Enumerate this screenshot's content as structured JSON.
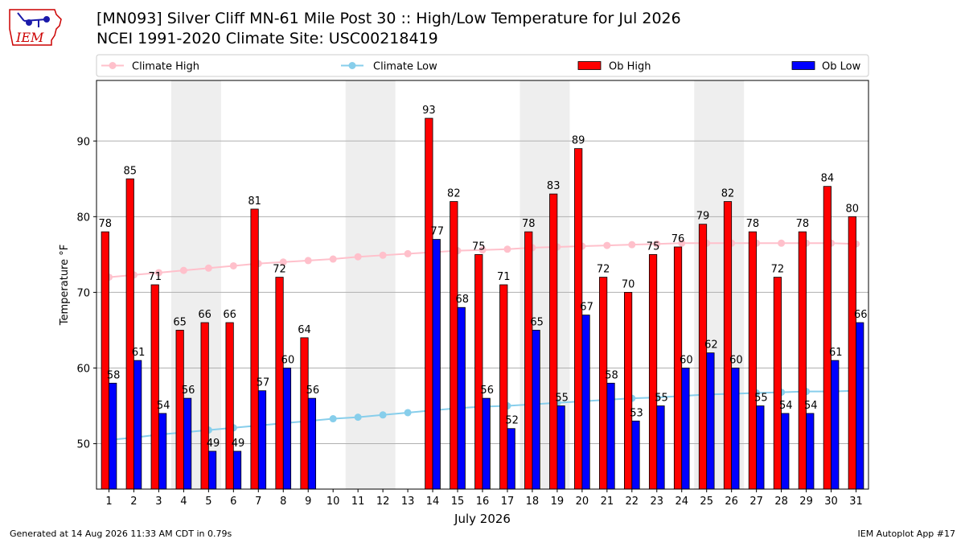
{
  "header": {
    "title_line1": "[MN093] Silver Cliff MN-61 Mile Post 30 :: High/Low Temperature for Jul 2026",
    "title_line2": "NCEI 1991-2020 Climate Site: USC00218419",
    "logo_text": "IEM",
    "logo_icon": "iowa-state-weather-icon"
  },
  "footer": {
    "left": "Generated at 14 Aug 2026 11:33 AM CDT in 0.79s",
    "right": "IEM Autoplot App #17"
  },
  "colors": {
    "ob_high": "#ff0000",
    "ob_low": "#0000ff",
    "climate_high": "#ffc0cb",
    "climate_low": "#87ceeb",
    "weekend_band": "#eeeeee",
    "grid": "#b0b0b0",
    "logo": "#cc0000"
  },
  "chart_data": {
    "type": "bar",
    "xlabel": "July 2026",
    "ylabel": "Temperature °F",
    "ylim": [
      44,
      98
    ],
    "yticks": [
      50,
      60,
      70,
      80,
      90
    ],
    "grid": "horizontal",
    "legend_position": "top",
    "categories": [
      1,
      2,
      3,
      4,
      5,
      6,
      7,
      8,
      9,
      10,
      11,
      12,
      13,
      14,
      15,
      16,
      17,
      18,
      19,
      20,
      21,
      22,
      23,
      24,
      25,
      26,
      27,
      28,
      29,
      30,
      31
    ],
    "weekend_bands": [
      [
        4,
        5
      ],
      [
        11,
        12
      ],
      [
        18,
        19
      ],
      [
        25,
        26
      ]
    ],
    "series": [
      {
        "name": "Climate High",
        "kind": "line",
        "values": [
          72.0,
          72.3,
          72.6,
          72.9,
          73.2,
          73.5,
          73.8,
          74.0,
          74.2,
          74.4,
          74.7,
          74.9,
          75.1,
          75.3,
          75.5,
          75.6,
          75.7,
          75.9,
          76.0,
          76.1,
          76.2,
          76.3,
          76.4,
          76.5,
          76.5,
          76.5,
          76.5,
          76.5,
          76.5,
          76.5,
          76.4
        ]
      },
      {
        "name": "Climate Low",
        "kind": "line",
        "values": [
          50.5,
          50.8,
          51.2,
          51.5,
          51.8,
          52.1,
          52.4,
          52.7,
          53.0,
          53.3,
          53.5,
          53.8,
          54.1,
          54.4,
          54.7,
          54.9,
          55.0,
          55.2,
          55.4,
          55.6,
          55.8,
          56.0,
          56.1,
          56.3,
          56.5,
          56.6,
          56.7,
          56.8,
          56.9,
          56.9,
          57.0
        ]
      },
      {
        "name": "Ob High",
        "kind": "bar",
        "values": [
          78,
          85,
          71,
          65,
          66,
          66,
          81,
          72,
          64,
          null,
          null,
          null,
          null,
          93,
          82,
          75,
          71,
          78,
          83,
          89,
          72,
          70,
          75,
          76,
          79,
          82,
          78,
          72,
          78,
          84,
          80
        ]
      },
      {
        "name": "Ob Low",
        "kind": "bar",
        "values": [
          58,
          61,
          54,
          56,
          49,
          49,
          57,
          60,
          56,
          null,
          null,
          null,
          null,
          77,
          68,
          56,
          52,
          65,
          55,
          67,
          58,
          53,
          55,
          60,
          62,
          60,
          55,
          54,
          54,
          61,
          66
        ]
      }
    ]
  }
}
